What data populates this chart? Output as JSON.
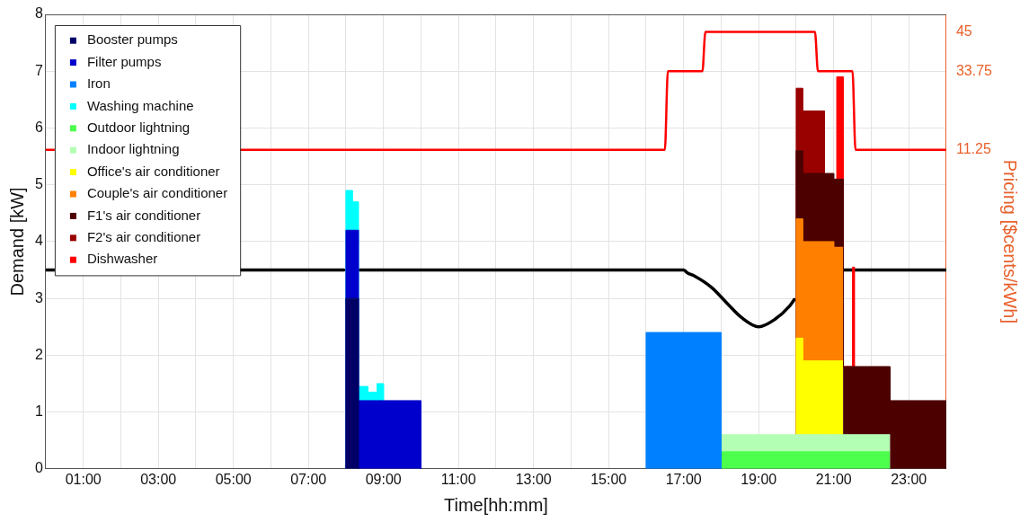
{
  "chart_data": {
    "type": "area",
    "stacked": true,
    "xlabel": "Time[hh:mm]",
    "ylabel": "Demand [kW]",
    "y2label": "Pricing [$cents/kWh]",
    "x": [
      8,
      8,
      8.17,
      8.17,
      8.33,
      8.33,
      8.58,
      8.58,
      8.83,
      8.83,
      9,
      9,
      10,
      10,
      16,
      16,
      18,
      18,
      20,
      20,
      20.17,
      20.17,
      20.75,
      20.75,
      21,
      21,
      21.08,
      21.08,
      21.25,
      21.25,
      21.5,
      21.5,
      21.55,
      21.55,
      22.5,
      22.5,
      24,
      24
    ],
    "xlim": [
      0,
      24
    ],
    "xticks": [
      {
        "value": 1,
        "label": "01:00"
      },
      {
        "value": 2,
        "label": null
      },
      {
        "value": 3,
        "label": "03:00"
      },
      {
        "value": 4,
        "label": null
      },
      {
        "value": 5,
        "label": "05:00"
      },
      {
        "value": 6,
        "label": null
      },
      {
        "value": 7,
        "label": "07:00"
      },
      {
        "value": 8,
        "label": null
      },
      {
        "value": 9,
        "label": "09:00"
      },
      {
        "value": 10,
        "label": null
      },
      {
        "value": 11,
        "label": "11:00"
      },
      {
        "value": 12,
        "label": null
      },
      {
        "value": 13,
        "label": "13:00"
      },
      {
        "value": 14,
        "label": null
      },
      {
        "value": 15,
        "label": "15:00"
      },
      {
        "value": 16,
        "label": null
      },
      {
        "value": 17,
        "label": "17:00"
      },
      {
        "value": 18,
        "label": null
      },
      {
        "value": 19,
        "label": "19:00"
      },
      {
        "value": 20,
        "label": null
      },
      {
        "value": 21,
        "label": "21:00"
      },
      {
        "value": 22,
        "label": null
      },
      {
        "value": 23,
        "label": "23:00"
      }
    ],
    "ylim": [
      0,
      8
    ],
    "yticks": [
      0,
      1,
      2,
      3,
      4,
      5,
      6,
      7,
      8
    ],
    "y2lim": [
      -80,
      50
    ],
    "y2ticks": [
      11.25,
      33.75,
      45
    ],
    "grid": true,
    "legend": "top left",
    "series": [
      {
        "name": "Booster pumps",
        "color": "#000066",
        "values": [
          0,
          3,
          3,
          3,
          3,
          0,
          null,
          null,
          null,
          null,
          null,
          null,
          null,
          null,
          null,
          null,
          null,
          null,
          null,
          null,
          null,
          null,
          null,
          null,
          null,
          null,
          null,
          null,
          null,
          null,
          null,
          null,
          null,
          null,
          null,
          null,
          null,
          null
        ]
      },
      {
        "name": "Filter pumps",
        "color": "#0000cc",
        "values": [
          0,
          1.2,
          1.2,
          1.2,
          1.2,
          1.2,
          1.2,
          1.2,
          1.2,
          1.2,
          1.2,
          1.2,
          1.2,
          0,
          null,
          null,
          null,
          null,
          null,
          null,
          null,
          null,
          null,
          null,
          null,
          null,
          null,
          null,
          null,
          null,
          null,
          null,
          null,
          null,
          null,
          null,
          null,
          null
        ]
      },
      {
        "name": "Iron",
        "color": "#0080ff",
        "values": [
          null,
          null,
          null,
          null,
          null,
          null,
          null,
          null,
          null,
          null,
          null,
          null,
          null,
          null,
          0,
          2.4,
          2.4,
          0,
          null,
          null,
          null,
          null,
          null,
          null,
          null,
          null,
          null,
          null,
          null,
          null,
          null,
          null,
          null,
          null,
          null,
          null,
          null,
          null
        ]
      },
      {
        "name": "Washing machine",
        "color": "#00ffff",
        "values": [
          0,
          0.7,
          0.7,
          0.5,
          0.5,
          0.25,
          0.25,
          0.15,
          0.15,
          0.3,
          0.3,
          0,
          null,
          null,
          null,
          null,
          null,
          null,
          null,
          null,
          null,
          null,
          null,
          null,
          null,
          null,
          null,
          null,
          null,
          null,
          null,
          null,
          null,
          null,
          null,
          null,
          null,
          null
        ]
      },
      {
        "name": "Outdoor lightning",
        "color": "#4dff4d",
        "values": [
          null,
          null,
          null,
          null,
          null,
          null,
          null,
          null,
          null,
          null,
          null,
          null,
          null,
          null,
          null,
          null,
          0,
          0.3,
          0.3,
          0.3,
          0.3,
          0.3,
          0.3,
          0.3,
          0.3,
          0.3,
          0.3,
          0.3,
          0.3,
          0.3,
          0.3,
          0.3,
          0.3,
          0.3,
          0.3,
          null,
          null,
          null
        ]
      },
      {
        "name": "Indoor lightning",
        "color": "#b3ffb3",
        "values": [
          null,
          null,
          null,
          null,
          null,
          null,
          null,
          null,
          null,
          null,
          null,
          null,
          null,
          null,
          null,
          null,
          0,
          0.3,
          0.3,
          0.3,
          0.3,
          0.3,
          0.3,
          0.3,
          0.3,
          0.3,
          0.3,
          0.3,
          0.3,
          0.3,
          0.3,
          0.3,
          0.3,
          0.3,
          0.3,
          null,
          null,
          null
        ]
      },
      {
        "name": "Office's air conditioner",
        "color": "#ffff00",
        "values": [
          null,
          null,
          null,
          null,
          null,
          null,
          null,
          null,
          null,
          null,
          null,
          null,
          null,
          null,
          null,
          null,
          null,
          null,
          0,
          1.7,
          1.7,
          1.3,
          1.3,
          1.3,
          1.3,
          1.3,
          1.3,
          1.3,
          1.3,
          null,
          null,
          null,
          null,
          null,
          null,
          null,
          null,
          null
        ]
      },
      {
        "name": "Couple's air conditioner",
        "color": "#ff8000",
        "values": [
          null,
          null,
          null,
          null,
          null,
          null,
          null,
          null,
          null,
          null,
          null,
          null,
          null,
          null,
          null,
          null,
          null,
          null,
          0,
          2.1,
          2.1,
          2.1,
          2.1,
          2.1,
          2.1,
          2,
          2,
          2,
          2,
          null,
          null,
          null,
          null,
          null,
          null,
          null,
          null,
          null
        ]
      },
      {
        "name": "F1's air conditioner",
        "color": "#4d0000",
        "values": [
          null,
          null,
          null,
          null,
          null,
          null,
          null,
          null,
          null,
          null,
          null,
          null,
          null,
          null,
          null,
          null,
          null,
          null,
          0,
          1.2,
          1.2,
          1.2,
          1.2,
          1.2,
          1.2,
          1.2,
          1.2,
          1.2,
          1.2,
          1.2,
          1.2,
          1.2,
          1.2,
          1.2,
          1.2,
          1.2,
          1.2,
          0
        ]
      },
      {
        "name": "F2's air conditioner",
        "color": "#990000",
        "values": [
          null,
          null,
          null,
          null,
          null,
          null,
          null,
          null,
          null,
          null,
          null,
          null,
          null,
          null,
          null,
          null,
          null,
          null,
          0,
          1.1,
          1.1,
          1.1,
          1.1,
          0,
          null,
          null,
          null,
          null,
          null,
          null,
          null,
          null,
          null,
          null,
          null,
          null,
          null,
          null
        ]
      },
      {
        "name": "Dishwasher",
        "color": "#ff0000",
        "values": [
          null,
          null,
          null,
          null,
          null,
          null,
          null,
          null,
          null,
          null,
          null,
          null,
          null,
          null,
          null,
          null,
          null,
          null,
          null,
          null,
          null,
          null,
          null,
          null,
          null,
          null,
          0,
          1.8,
          1.8,
          0,
          0,
          1.75,
          1.75,
          0,
          null,
          null,
          null,
          null
        ]
      },
      {
        "type": "line",
        "color": "#000000",
        "x": [
          0,
          7.95,
          8.17,
          8.36,
          17,
          17.1,
          17.27,
          17.75,
          18.15,
          18.55,
          19,
          19.43,
          19.83,
          19.95,
          20.5,
          21.25,
          24
        ],
        "values": [
          3.5,
          3.5,
          null,
          3.5,
          3.5,
          3.45,
          3.4,
          3.19,
          2.92,
          2.66,
          2.5,
          2.63,
          2.87,
          2.98,
          null,
          3.5,
          3.5
        ]
      },
      {
        "type": "line",
        "axis": "y2",
        "color": "#ff0000",
        "x": [
          0,
          16.5,
          16.58,
          17.5,
          17.58,
          20.5,
          20.58,
          21.5,
          21.58,
          24
        ],
        "values": [
          11.25,
          11.25,
          33.75,
          33.75,
          45,
          45,
          33.75,
          33.75,
          11.25,
          11.25
        ]
      }
    ]
  }
}
